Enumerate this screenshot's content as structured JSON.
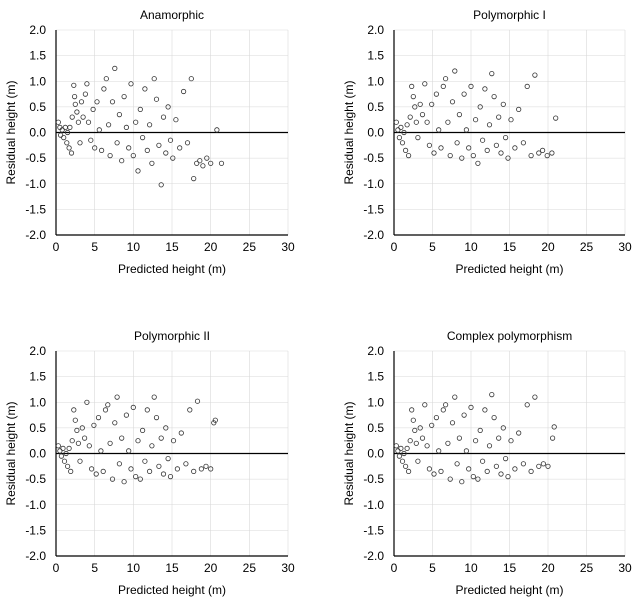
{
  "chart_data": [
    {
      "type": "scatter",
      "title": "Anamorphic",
      "xlabel": "Predicted height (m)",
      "ylabel": "Residual height (m)",
      "xlim": [
        0,
        30
      ],
      "ylim": [
        -2.0,
        2.0
      ],
      "xticks": [
        "0",
        "5",
        "10",
        "15",
        "20",
        "25",
        "30"
      ],
      "yticks": [
        "2.0",
        "1.5",
        "1.0",
        "0.5",
        "0.0",
        "-0.5",
        "-1.0",
        "-1.5",
        "-2.0"
      ],
      "grid": true,
      "points": [
        [
          0.3,
          0.2
        ],
        [
          0.5,
          0.1
        ],
        [
          0.6,
          -0.05
        ],
        [
          0.8,
          0.05
        ],
        [
          1.0,
          -0.1
        ],
        [
          1.2,
          0.1
        ],
        [
          1.4,
          -0.2
        ],
        [
          1.5,
          0.0
        ],
        [
          1.7,
          -0.3
        ],
        [
          1.8,
          0.1
        ],
        [
          2.0,
          -0.4
        ],
        [
          2.1,
          0.3
        ],
        [
          2.3,
          0.92
        ],
        [
          2.4,
          0.7
        ],
        [
          2.5,
          0.55
        ],
        [
          2.7,
          0.4
        ],
        [
          2.9,
          0.2
        ],
        [
          3.1,
          -0.2
        ],
        [
          3.3,
          0.6
        ],
        [
          3.5,
          0.3
        ],
        [
          3.8,
          0.75
        ],
        [
          4.0,
          0.95
        ],
        [
          4.2,
          0.2
        ],
        [
          4.5,
          -0.15
        ],
        [
          4.8,
          0.45
        ],
        [
          5.0,
          -0.3
        ],
        [
          5.3,
          0.6
        ],
        [
          5.6,
          0.05
        ],
        [
          5.9,
          -0.35
        ],
        [
          6.2,
          0.85
        ],
        [
          6.5,
          1.05
        ],
        [
          6.8,
          0.15
        ],
        [
          7.0,
          -0.45
        ],
        [
          7.3,
          0.6
        ],
        [
          7.6,
          1.25
        ],
        [
          7.9,
          -0.2
        ],
        [
          8.2,
          0.35
        ],
        [
          8.5,
          -0.55
        ],
        [
          8.8,
          0.7
        ],
        [
          9.1,
          0.1
        ],
        [
          9.4,
          -0.3
        ],
        [
          9.7,
          0.95
        ],
        [
          10.0,
          -0.45
        ],
        [
          10.3,
          0.2
        ],
        [
          10.6,
          -0.75
        ],
        [
          10.9,
          0.45
        ],
        [
          11.2,
          -0.1
        ],
        [
          11.5,
          0.85
        ],
        [
          11.8,
          -0.35
        ],
        [
          12.1,
          0.15
        ],
        [
          12.4,
          -0.6
        ],
        [
          12.7,
          1.05
        ],
        [
          13.0,
          0.65
        ],
        [
          13.3,
          -0.25
        ],
        [
          13.6,
          -1.02
        ],
        [
          13.9,
          0.3
        ],
        [
          14.2,
          -0.4
        ],
        [
          14.5,
          0.5
        ],
        [
          14.8,
          -0.15
        ],
        [
          15.1,
          -0.5
        ],
        [
          15.5,
          0.25
        ],
        [
          16.0,
          -0.3
        ],
        [
          16.5,
          0.8
        ],
        [
          17.0,
          -0.2
        ],
        [
          17.5,
          1.05
        ],
        [
          17.8,
          -0.9
        ],
        [
          18.2,
          -0.6
        ],
        [
          18.6,
          -0.55
        ],
        [
          19.0,
          -0.65
        ],
        [
          19.5,
          -0.5
        ],
        [
          20.0,
          -0.6
        ],
        [
          20.8,
          0.05
        ],
        [
          21.4,
          -0.6
        ]
      ]
    },
    {
      "type": "scatter",
      "title": "Polymorphic I",
      "xlabel": "Predicted height (m)",
      "ylabel": "Residual height (m)",
      "xlim": [
        0,
        30
      ],
      "ylim": [
        -2.0,
        2.0
      ],
      "xticks": [
        "0",
        "5",
        "10",
        "15",
        "20",
        "25",
        "30"
      ],
      "yticks": [
        "2.0",
        "1.5",
        "1.0",
        "0.5",
        "0.0",
        "-0.5",
        "-1.0",
        "-1.5",
        "-2.0"
      ],
      "grid": true,
      "points": [
        [
          0.3,
          0.2
        ],
        [
          0.5,
          0.05
        ],
        [
          0.7,
          -0.1
        ],
        [
          0.9,
          0.1
        ],
        [
          1.1,
          -0.2
        ],
        [
          1.3,
          0.0
        ],
        [
          1.5,
          -0.35
        ],
        [
          1.7,
          0.15
        ],
        [
          1.9,
          -0.45
        ],
        [
          2.1,
          0.3
        ],
        [
          2.3,
          0.9
        ],
        [
          2.5,
          0.7
        ],
        [
          2.7,
          0.5
        ],
        [
          2.9,
          0.2
        ],
        [
          3.1,
          -0.1
        ],
        [
          3.4,
          0.55
        ],
        [
          3.7,
          0.35
        ],
        [
          4.0,
          0.95
        ],
        [
          4.3,
          0.2
        ],
        [
          4.6,
          -0.25
        ],
        [
          4.9,
          0.55
        ],
        [
          5.2,
          -0.4
        ],
        [
          5.5,
          0.75
        ],
        [
          5.8,
          0.05
        ],
        [
          6.1,
          -0.3
        ],
        [
          6.4,
          0.9
        ],
        [
          6.7,
          1.05
        ],
        [
          7.0,
          0.2
        ],
        [
          7.3,
          -0.45
        ],
        [
          7.6,
          0.6
        ],
        [
          7.9,
          1.2
        ],
        [
          8.2,
          -0.2
        ],
        [
          8.5,
          0.35
        ],
        [
          8.8,
          -0.5
        ],
        [
          9.1,
          0.75
        ],
        [
          9.4,
          0.05
        ],
        [
          9.7,
          -0.3
        ],
        [
          10.0,
          0.9
        ],
        [
          10.3,
          -0.45
        ],
        [
          10.6,
          0.25
        ],
        [
          10.9,
          -0.6
        ],
        [
          11.2,
          0.5
        ],
        [
          11.5,
          -0.15
        ],
        [
          11.8,
          0.85
        ],
        [
          12.1,
          -0.35
        ],
        [
          12.4,
          0.15
        ],
        [
          12.7,
          1.15
        ],
        [
          13.0,
          0.7
        ],
        [
          13.3,
          -0.25
        ],
        [
          13.6,
          0.3
        ],
        [
          13.9,
          -0.4
        ],
        [
          14.2,
          0.55
        ],
        [
          14.5,
          -0.1
        ],
        [
          14.8,
          -0.5
        ],
        [
          15.2,
          0.25
        ],
        [
          15.7,
          -0.3
        ],
        [
          16.2,
          0.45
        ],
        [
          16.8,
          -0.2
        ],
        [
          17.3,
          0.9
        ],
        [
          17.8,
          -0.45
        ],
        [
          18.3,
          1.12
        ],
        [
          18.8,
          -0.4
        ],
        [
          19.3,
          -0.35
        ],
        [
          19.9,
          -0.45
        ],
        [
          20.5,
          -0.4
        ],
        [
          21.0,
          0.28
        ]
      ]
    },
    {
      "type": "scatter",
      "title": "Polymorphic II",
      "xlabel": "Predicted height (m)",
      "ylabel": "Residual height (m)",
      "xlim": [
        0,
        30
      ],
      "ylim": [
        -2.0,
        2.0
      ],
      "xticks": [
        "0",
        "5",
        "10",
        "15",
        "20",
        "25",
        "30"
      ],
      "yticks": [
        "2.0",
        "1.5",
        "1.0",
        "0.5",
        "0.0",
        "-0.5",
        "-1.0",
        "-1.5",
        "-2.0"
      ],
      "grid": true,
      "points": [
        [
          0.3,
          0.15
        ],
        [
          0.5,
          0.05
        ],
        [
          0.7,
          -0.05
        ],
        [
          0.9,
          0.1
        ],
        [
          1.1,
          -0.15
        ],
        [
          1.3,
          0.0
        ],
        [
          1.5,
          -0.25
        ],
        [
          1.7,
          0.1
        ],
        [
          1.9,
          -0.35
        ],
        [
          2.1,
          0.25
        ],
        [
          2.3,
          0.85
        ],
        [
          2.5,
          0.65
        ],
        [
          2.7,
          0.45
        ],
        [
          2.9,
          0.2
        ],
        [
          3.1,
          -0.15
        ],
        [
          3.4,
          0.5
        ],
        [
          3.7,
          0.3
        ],
        [
          4.0,
          1.0
        ],
        [
          4.3,
          0.15
        ],
        [
          4.6,
          -0.3
        ],
        [
          4.9,
          0.55
        ],
        [
          5.2,
          -0.4
        ],
        [
          5.5,
          0.7
        ],
        [
          5.8,
          0.05
        ],
        [
          6.1,
          -0.35
        ],
        [
          6.4,
          0.85
        ],
        [
          6.7,
          0.95
        ],
        [
          7.0,
          0.2
        ],
        [
          7.3,
          -0.5
        ],
        [
          7.6,
          0.6
        ],
        [
          7.9,
          1.1
        ],
        [
          8.2,
          -0.2
        ],
        [
          8.5,
          0.3
        ],
        [
          8.8,
          -0.55
        ],
        [
          9.1,
          0.75
        ],
        [
          9.4,
          0.05
        ],
        [
          9.7,
          -0.3
        ],
        [
          10.0,
          0.9
        ],
        [
          10.3,
          -0.45
        ],
        [
          10.6,
          0.25
        ],
        [
          10.9,
          -0.5
        ],
        [
          11.2,
          0.45
        ],
        [
          11.5,
          -0.15
        ],
        [
          11.8,
          0.85
        ],
        [
          12.1,
          -0.35
        ],
        [
          12.4,
          0.15
        ],
        [
          12.7,
          1.1
        ],
        [
          13.0,
          0.7
        ],
        [
          13.3,
          -0.25
        ],
        [
          13.6,
          0.3
        ],
        [
          13.9,
          -0.4
        ],
        [
          14.2,
          0.5
        ],
        [
          14.5,
          -0.1
        ],
        [
          14.8,
          -0.45
        ],
        [
          15.2,
          0.25
        ],
        [
          15.7,
          -0.3
        ],
        [
          16.2,
          0.4
        ],
        [
          16.8,
          -0.2
        ],
        [
          17.3,
          0.85
        ],
        [
          17.8,
          -0.35
        ],
        [
          18.3,
          1.02
        ],
        [
          18.8,
          -0.3
        ],
        [
          19.4,
          -0.25
        ],
        [
          20.0,
          -0.3
        ],
        [
          20.4,
          0.6
        ],
        [
          20.6,
          0.65
        ]
      ]
    },
    {
      "type": "scatter",
      "title": "Complex polymorphism",
      "xlabel": "Predicted height (m)",
      "ylabel": "Residual height (m)",
      "xlim": [
        0,
        30
      ],
      "ylim": [
        -2.0,
        2.0
      ],
      "xticks": [
        "0",
        "5",
        "10",
        "15",
        "20",
        "25",
        "30"
      ],
      "yticks": [
        "2.0",
        "1.5",
        "1.0",
        "0.5",
        "0.0",
        "-0.5",
        "-1.0",
        "-1.5",
        "-2.0"
      ],
      "grid": true,
      "points": [
        [
          0.3,
          0.15
        ],
        [
          0.5,
          0.05
        ],
        [
          0.7,
          -0.05
        ],
        [
          0.9,
          0.1
        ],
        [
          1.1,
          -0.15
        ],
        [
          1.3,
          0.0
        ],
        [
          1.5,
          -0.25
        ],
        [
          1.7,
          0.1
        ],
        [
          1.9,
          -0.35
        ],
        [
          2.1,
          0.25
        ],
        [
          2.3,
          0.85
        ],
        [
          2.5,
          0.65
        ],
        [
          2.7,
          0.45
        ],
        [
          2.9,
          0.2
        ],
        [
          3.1,
          -0.15
        ],
        [
          3.4,
          0.5
        ],
        [
          3.7,
          0.3
        ],
        [
          4.0,
          0.95
        ],
        [
          4.3,
          0.15
        ],
        [
          4.6,
          -0.3
        ],
        [
          4.9,
          0.55
        ],
        [
          5.2,
          -0.4
        ],
        [
          5.5,
          0.7
        ],
        [
          5.8,
          0.05
        ],
        [
          6.1,
          -0.35
        ],
        [
          6.4,
          0.85
        ],
        [
          6.7,
          0.95
        ],
        [
          7.0,
          0.2
        ],
        [
          7.3,
          -0.5
        ],
        [
          7.6,
          0.6
        ],
        [
          7.9,
          1.1
        ],
        [
          8.2,
          -0.2
        ],
        [
          8.5,
          0.3
        ],
        [
          8.8,
          -0.55
        ],
        [
          9.1,
          0.75
        ],
        [
          9.4,
          0.05
        ],
        [
          9.7,
          -0.3
        ],
        [
          10.0,
          0.9
        ],
        [
          10.3,
          -0.45
        ],
        [
          10.6,
          0.25
        ],
        [
          10.9,
          -0.5
        ],
        [
          11.2,
          0.45
        ],
        [
          11.5,
          -0.15
        ],
        [
          11.8,
          0.85
        ],
        [
          12.1,
          -0.35
        ],
        [
          12.4,
          0.15
        ],
        [
          12.7,
          1.15
        ],
        [
          13.0,
          0.7
        ],
        [
          13.3,
          -0.25
        ],
        [
          13.6,
          0.3
        ],
        [
          13.9,
          -0.4
        ],
        [
          14.2,
          0.5
        ],
        [
          14.5,
          -0.1
        ],
        [
          14.8,
          -0.45
        ],
        [
          15.2,
          0.25
        ],
        [
          15.7,
          -0.3
        ],
        [
          16.2,
          0.4
        ],
        [
          16.8,
          -0.2
        ],
        [
          17.3,
          0.95
        ],
        [
          17.8,
          -0.35
        ],
        [
          18.3,
          1.1
        ],
        [
          18.8,
          -0.25
        ],
        [
          19.4,
          -0.2
        ],
        [
          20.0,
          -0.25
        ],
        [
          20.6,
          0.3
        ],
        [
          20.8,
          0.52
        ]
      ]
    }
  ]
}
